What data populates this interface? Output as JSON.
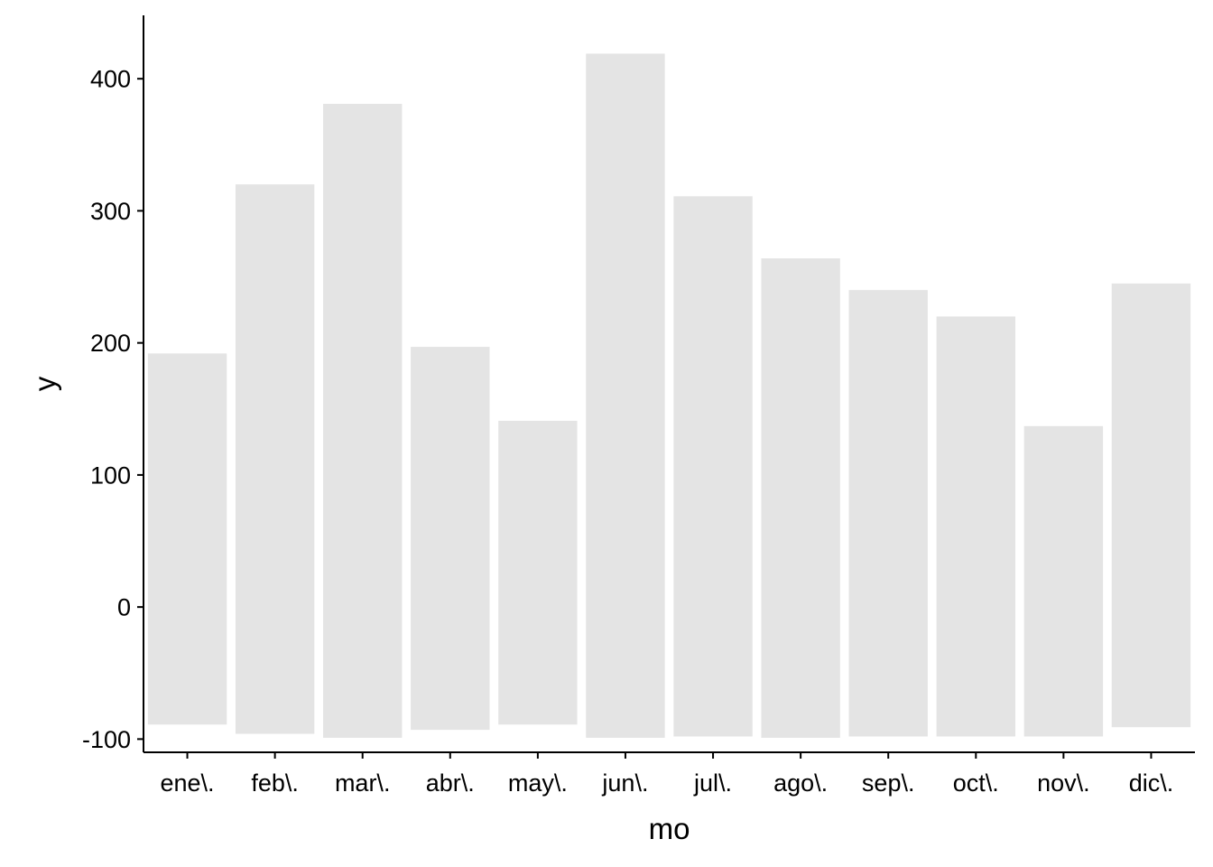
{
  "chart_data": {
    "type": "bar",
    "categories": [
      "ene\\.",
      "feb\\.",
      "mar\\.",
      "abr\\.",
      "may\\.",
      "jun\\.",
      "jul\\.",
      "ago\\.",
      "sep\\.",
      "oct\\.",
      "nov\\.",
      "dic\\."
    ],
    "series": [
      {
        "low": [
          -89,
          -96,
          -99,
          -93,
          -89,
          -99,
          -98,
          -99,
          -98,
          -98,
          -98,
          -91
        ],
        "high": [
          192,
          320,
          381,
          197,
          141,
          419,
          311,
          264,
          240,
          220,
          137,
          245
        ]
      }
    ],
    "xlabel": "mo",
    "ylabel": "y",
    "ylim": [
      -110,
      448
    ],
    "yticks": [
      -100,
      0,
      100,
      200,
      300,
      400
    ],
    "grid": false,
    "bar_color": "#e4e4e4",
    "axis_color": "#000000"
  }
}
